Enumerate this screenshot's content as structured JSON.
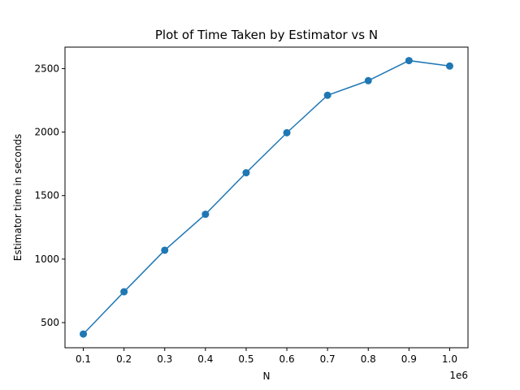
{
  "chart_data": {
    "type": "line",
    "title": "Plot of Time Taken by Estimator vs N",
    "xlabel": "N",
    "ylabel": "Estimator time in seconds",
    "x_offset_label": "1e6",
    "x": [
      0.1,
      0.2,
      0.3,
      0.4,
      0.5,
      0.6,
      0.7,
      0.8,
      0.9,
      1.0
    ],
    "x_tick_labels": [
      "0.1",
      "0.2",
      "0.3",
      "0.4",
      "0.5",
      "0.6",
      "0.7",
      "0.8",
      "0.9",
      "1.0"
    ],
    "y_ticks": [
      500,
      1000,
      1500,
      2000,
      2500
    ],
    "y_tick_labels": [
      "500",
      "1000",
      "1500",
      "2000",
      "2500"
    ],
    "xlim": [
      0.055,
      1.045
    ],
    "ylim": [
      302,
      2669
    ],
    "grid": false,
    "series": [
      {
        "values": [
          410,
          743,
          1070,
          1353,
          1680,
          1995,
          2290,
          2405,
          2563,
          2520
        ],
        "color": "#1f77b4",
        "marker": "circle"
      }
    ]
  }
}
